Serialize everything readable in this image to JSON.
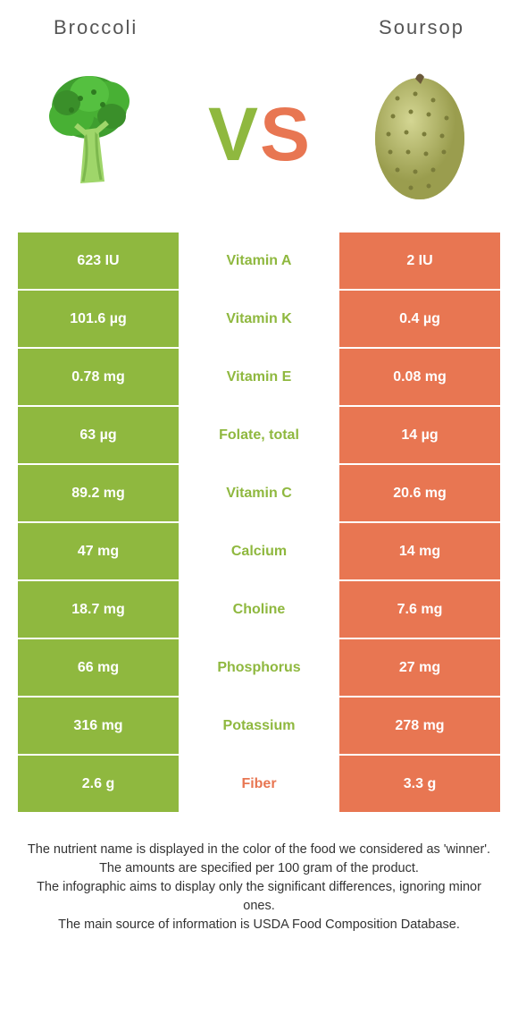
{
  "colors": {
    "green": "#8fb83f",
    "orange": "#e87652",
    "vs_v": "#8fb83f",
    "vs_s": "#e87652",
    "footer_text": "#333333"
  },
  "header": {
    "left": "Broccoli",
    "right": "Soursop"
  },
  "vs": {
    "v": "V",
    "s": "S"
  },
  "rows": [
    {
      "left": "623 IU",
      "label": "Vitamin A",
      "right": "2 IU",
      "winner": "left"
    },
    {
      "left": "101.6 µg",
      "label": "Vitamin K",
      "right": "0.4 µg",
      "winner": "left"
    },
    {
      "left": "0.78 mg",
      "label": "Vitamin E",
      "right": "0.08 mg",
      "winner": "left"
    },
    {
      "left": "63 µg",
      "label": "Folate, total",
      "right": "14 µg",
      "winner": "left"
    },
    {
      "left": "89.2 mg",
      "label": "Vitamin C",
      "right": "20.6 mg",
      "winner": "left"
    },
    {
      "left": "47 mg",
      "label": "Calcium",
      "right": "14 mg",
      "winner": "left"
    },
    {
      "left": "18.7 mg",
      "label": "Choline",
      "right": "7.6 mg",
      "winner": "left"
    },
    {
      "left": "66 mg",
      "label": "Phosphorus",
      "right": "27 mg",
      "winner": "left"
    },
    {
      "left": "316 mg",
      "label": "Potassium",
      "right": "278 mg",
      "winner": "left"
    },
    {
      "left": "2.6 g",
      "label": "Fiber",
      "right": "3.3 g",
      "winner": "right"
    }
  ],
  "footer": {
    "line1": "The nutrient name is displayed in the color of the food we considered as 'winner'.",
    "line2": "The amounts are specified per 100 gram of the product.",
    "line3": "The infographic aims to display only the significant differences, ignoring minor ones.",
    "line4": "The main source of information is USDA Food Composition Database."
  }
}
